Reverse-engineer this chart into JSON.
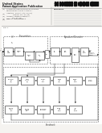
{
  "bg_color": "#e8e4df",
  "page_bg": "#f5f3f0",
  "diagram_bg": "#ffffff",
  "barcode_color": "#111111",
  "text_dark": "#222222",
  "text_mid": "#444444",
  "text_light": "#666666",
  "box_edge": "#333333",
  "dashed_edge": "#555555",
  "arrow_color": "#222222",
  "line_color": "#999999"
}
